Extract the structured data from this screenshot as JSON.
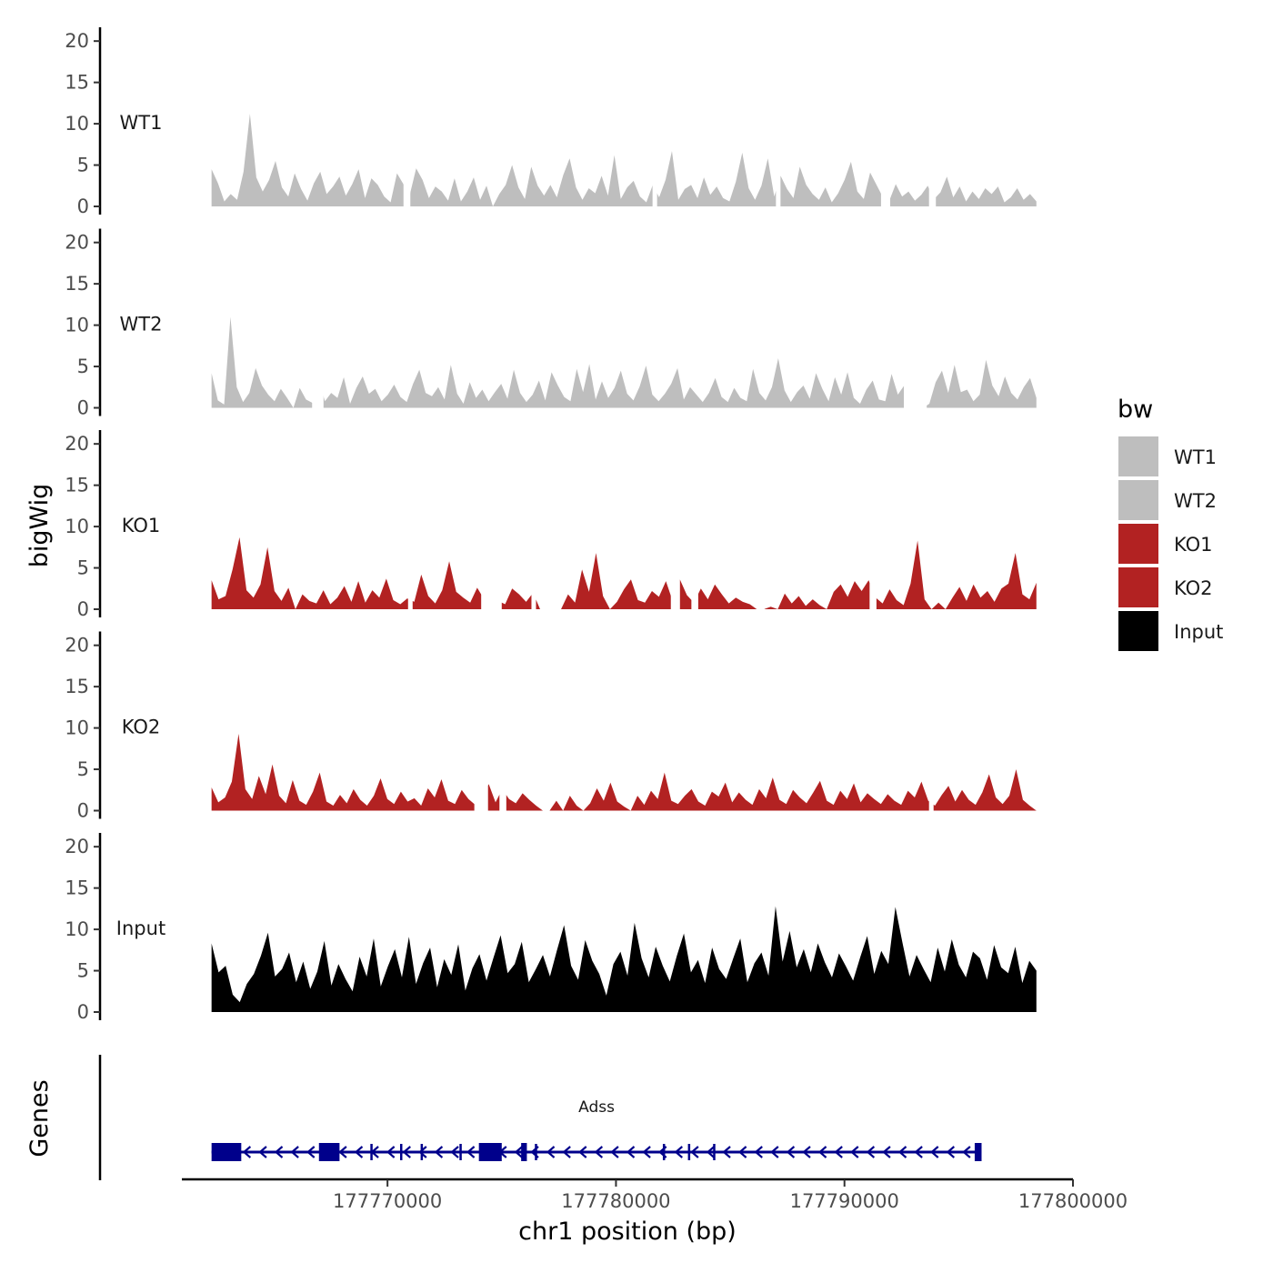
{
  "chart_data": {
    "type": "area",
    "y_axis_title": "bigWig",
    "x_axis_title": "chr1 position (bp)",
    "genes_axis_title": "Genes",
    "xlim": [
      177761000,
      177800000
    ],
    "data_range": [
      177762300,
      177798400
    ],
    "ylim": [
      0,
      22
    ],
    "y_ticks": [
      0,
      5,
      10,
      15,
      20
    ],
    "y_tick_labels": [
      "0",
      "5",
      "10",
      "15",
      "20"
    ],
    "x_ticks": [
      177770000,
      177780000,
      177790000,
      177800000
    ],
    "x_tick_labels": [
      "177770000",
      "177780000",
      "177790000",
      "177800000"
    ],
    "legend": {
      "title": "bw",
      "entries": [
        {
          "label": "WT1",
          "color": "#bebebe"
        },
        {
          "label": "WT2",
          "color": "#bebebe"
        },
        {
          "label": "KO1",
          "color": "#b22222"
        },
        {
          "label": "KO2",
          "color": "#b22222"
        },
        {
          "label": "Input",
          "color": "#000000"
        }
      ]
    },
    "series": [
      {
        "name": "WT1",
        "color": "#bebebe",
        "values": [
          4.5,
          2.8,
          0.6,
          1.5,
          0.8,
          4.2,
          11.2,
          3.5,
          1.8,
          3.2,
          5.5,
          2.3,
          1.2,
          4.0,
          2.1,
          0.7,
          2.8,
          4.2,
          1.5,
          2.4,
          3.6,
          1.3,
          2.7,
          4.5,
          1.0,
          3.4,
          2.6,
          1.2,
          0.5,
          4.0,
          2.7,
          1.4,
          4.6,
          3.2,
          1.0,
          2.4,
          1.8,
          0.7,
          3.4,
          0.6,
          1.8,
          3.5,
          0.8,
          2.5,
          0,
          1.5,
          2.6,
          5.0,
          2.3,
          0.9,
          4.8,
          2.5,
          1.3,
          2.6,
          1.1,
          3.8,
          5.8,
          2.3,
          0.8,
          2.2,
          1.6,
          3.7,
          1.3,
          6.2,
          0.9,
          2.3,
          3.1,
          1.2,
          0.5,
          2.6,
          1.1,
          3.2,
          6.7,
          0.8,
          2.1,
          2.6,
          1.0,
          3.5,
          1.4,
          2.4,
          1.0,
          0.6,
          3.0,
          6.5,
          2.2,
          0.8,
          2.5,
          5.8,
          1.2,
          3.7,
          2.1,
          1.0,
          4.8,
          2.6,
          1.5,
          0.8,
          2.3,
          0.5,
          1.6,
          3.2,
          5.4,
          1.8,
          0.9,
          4.1,
          2.6,
          1.1,
          0.7,
          2.7,
          1.2,
          1.8,
          0.7,
          1.4,
          2.5,
          0.9,
          1.7,
          3.6,
          1.1,
          2.4,
          0.6,
          1.8,
          0.9,
          2.2,
          1.5,
          2.4,
          0.5,
          1.1,
          2.2,
          0.8,
          1.5,
          0.6
        ],
        "gaps": [
          [
            177770700,
            177771000
          ],
          [
            177781600,
            177781800
          ],
          [
            177787000,
            177787200
          ],
          [
            177791600,
            177792000
          ],
          [
            177793700,
            177794000
          ]
        ]
      },
      {
        "name": "WT2",
        "color": "#bebebe",
        "values": [
          4.2,
          0.9,
          0.4,
          11.0,
          2.5,
          0.7,
          1.8,
          4.8,
          2.7,
          1.6,
          0.8,
          2.3,
          1.2,
          0,
          2.4,
          1.0,
          0.6,
          3.5,
          0.8,
          1.8,
          1.2,
          3.7,
          0.5,
          2.4,
          3.8,
          1.7,
          2.3,
          0.8,
          1.6,
          2.8,
          1.3,
          0.7,
          2.9,
          4.6,
          1.8,
          1.4,
          2.5,
          1.0,
          5.2,
          1.7,
          0.5,
          3.1,
          1.2,
          2.2,
          0.8,
          1.9,
          2.9,
          1.1,
          4.6,
          1.8,
          0.7,
          1.6,
          3.3,
          0.9,
          4.3,
          2.7,
          1.3,
          0.8,
          4.7,
          1.9,
          5.3,
          1.0,
          3.2,
          1.2,
          2.4,
          4.5,
          1.7,
          0.9,
          2.6,
          5.1,
          1.6,
          0.8,
          1.7,
          2.9,
          4.8,
          1.0,
          2.5,
          1.6,
          0.7,
          1.8,
          3.6,
          1.3,
          0.7,
          2.4,
          1.2,
          0.8,
          4.7,
          1.8,
          0.9,
          2.5,
          6.0,
          2.1,
          0.7,
          1.9,
          2.7,
          1.1,
          4.2,
          2.3,
          0.8,
          3.7,
          1.6,
          4.3,
          1.2,
          0.5,
          2.2,
          3.3,
          1.0,
          0.8,
          4.1,
          1.6,
          2.7,
          0.6,
          0,
          0,
          0.5,
          3.1,
          4.5,
          1.8,
          5.2,
          1.9,
          2.2,
          0.8,
          1.6,
          5.8,
          2.7,
          1.4,
          3.8,
          1.8,
          1.0,
          2.5,
          3.6,
          1.2
        ],
        "gaps": [
          [
            177766700,
            177767200
          ],
          [
            177792600,
            177793600
          ]
        ]
      },
      {
        "name": "KO1",
        "color": "#b22222",
        "values": [
          3.5,
          1.2,
          1.6,
          4.8,
          8.7,
          2.3,
          1.4,
          3.0,
          7.5,
          2.2,
          1.0,
          2.6,
          0,
          1.8,
          1.0,
          0.7,
          2.3,
          0.6,
          1.4,
          2.8,
          0.9,
          3.4,
          0.8,
          2.3,
          1.4,
          3.7,
          1.1,
          0.6,
          1.3,
          0.9,
          4.2,
          1.6,
          0.7,
          2.3,
          5.8,
          2.1,
          1.4,
          0.8,
          2.6,
          1.2,
          2.2,
          1.0,
          0.6,
          2.5,
          1.8,
          0.9,
          2.0,
          0,
          0,
          0,
          0,
          1.8,
          0.8,
          4.8,
          2.1,
          6.8,
          1.6,
          0,
          0.9,
          2.4,
          3.6,
          1.1,
          0.8,
          2.2,
          1.5,
          3.4,
          0.9,
          3.6,
          1.7,
          0.8,
          2.5,
          1.2,
          3.0,
          1.8,
          0.7,
          1.4,
          0.9,
          0.6,
          0,
          0,
          0.3,
          0,
          1.9,
          0.7,
          1.6,
          0.4,
          1.2,
          0.5,
          0,
          2.1,
          3.0,
          1.5,
          3.4,
          2.2,
          3.5,
          1.4,
          0.7,
          2.4,
          1.1,
          0.5,
          3.1,
          8.3,
          1.2,
          0,
          0.8,
          0,
          1.4,
          2.7,
          1.0,
          3.0,
          1.4,
          2.2,
          0.9,
          2.5,
          3.1,
          6.8,
          1.8,
          1.2,
          3.2
        ],
        "gaps": [
          [
            177770900,
            177771100
          ],
          [
            177774100,
            177775000
          ],
          [
            177776300,
            177776500
          ],
          [
            177782400,
            177782800
          ],
          [
            177783300,
            177783600
          ],
          [
            177786300,
            177786500
          ],
          [
            177791100,
            177791400
          ]
        ]
      },
      {
        "name": "KO2",
        "color": "#b22222",
        "values": [
          2.8,
          1.0,
          1.6,
          3.5,
          9.3,
          2.6,
          1.4,
          4.2,
          2.0,
          5.6,
          1.8,
          0.9,
          3.7,
          1.2,
          0.7,
          2.3,
          4.6,
          1.1,
          0.6,
          1.9,
          0.9,
          2.6,
          1.3,
          0.6,
          1.8,
          3.9,
          1.4,
          0.8,
          2.3,
          1.1,
          1.5,
          0.6,
          2.7,
          1.6,
          3.8,
          1.2,
          0.8,
          2.5,
          1.4,
          0.7,
          1.8,
          3.2,
          1.0,
          2.6,
          1.4,
          0.9,
          2.1,
          1.3,
          0.6,
          0,
          0,
          1.2,
          0,
          1.8,
          0.6,
          0,
          0.9,
          2.7,
          1.2,
          3.4,
          1.1,
          0.5,
          0,
          1.8,
          0.7,
          2.4,
          1.4,
          4.6,
          1.2,
          0.8,
          1.8,
          2.6,
          1.1,
          0.6,
          2.3,
          1.7,
          3.4,
          1.0,
          2.2,
          1.3,
          0.7,
          2.6,
          1.5,
          4.0,
          1.3,
          0.8,
          2.5,
          1.6,
          0.9,
          2.2,
          3.6,
          1.2,
          0.7,
          2.4,
          1.4,
          3.3,
          1.0,
          2.1,
          1.4,
          0.8,
          2.0,
          1.2,
          0.7,
          2.4,
          1.6,
          3.5,
          1.2,
          0.6,
          1.9,
          3.0,
          1.1,
          2.5,
          1.3,
          0.7,
          2.2,
          4.4,
          1.6,
          0.8,
          1.8,
          5.0,
          1.3,
          0.6,
          0
        ],
        "gaps": [
          [
            177773800,
            177774400
          ],
          [
            177774900,
            177775200
          ],
          [
            177793700,
            177793900
          ]
        ]
      },
      {
        "name": "Input",
        "color": "#000000",
        "values": [
          8.3,
          4.8,
          5.6,
          2.1,
          1.2,
          3.4,
          4.6,
          6.8,
          9.6,
          4.3,
          5.2,
          7.2,
          3.6,
          6.1,
          2.8,
          4.9,
          8.6,
          3.2,
          5.8,
          4.0,
          2.5,
          6.7,
          4.3,
          8.9,
          3.1,
          5.5,
          7.6,
          4.2,
          9.1,
          3.4,
          5.9,
          7.8,
          3.0,
          6.4,
          4.5,
          8.2,
          2.6,
          5.3,
          7.0,
          3.8,
          6.6,
          9.3,
          4.7,
          5.8,
          8.5,
          3.6,
          5.2,
          6.9,
          4.3,
          7.5,
          10.5,
          5.6,
          3.9,
          8.7,
          6.2,
          4.6,
          2.0,
          5.8,
          7.3,
          4.4,
          10.8,
          6.5,
          4.2,
          7.9,
          5.6,
          3.7,
          6.8,
          9.5,
          4.8,
          6.3,
          3.5,
          7.8,
          5.2,
          4.0,
          6.5,
          8.9,
          3.6,
          5.9,
          7.2,
          4.4,
          12.8,
          6.1,
          9.8,
          5.4,
          7.6,
          4.8,
          8.3,
          6.0,
          4.2,
          7.1,
          5.5,
          3.8,
          6.6,
          9.2,
          4.6,
          7.4,
          5.8,
          12.7,
          8.4,
          4.3,
          6.9,
          5.2,
          3.6,
          7.8,
          4.9,
          8.8,
          5.7,
          4.2,
          7.3,
          6.5,
          3.9,
          8.1,
          5.4,
          4.7,
          7.9,
          3.5,
          6.2,
          5.0
        ]
      }
    ],
    "gene": {
      "name": "Adss",
      "strand": "-",
      "start": 177762300,
      "end": 177796000,
      "color": "#00008b",
      "exons": [
        [
          177762300,
          177763600
        ],
        [
          177767000,
          177767900
        ],
        [
          177774000,
          177775000
        ],
        [
          177775850,
          177776100
        ],
        [
          177795700,
          177796000
        ]
      ],
      "introns_markers": [
        177769300,
        177770600,
        177771500,
        177773200,
        177776500,
        177782100,
        177783200,
        177784300
      ]
    }
  }
}
